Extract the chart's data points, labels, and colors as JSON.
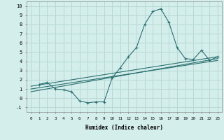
{
  "xlabel": "Humidex (Indice chaleur)",
  "bg_color": "#d4eeec",
  "grid_color": "#b8d8d5",
  "line_color": "#2a7070",
  "xlim": [
    -0.5,
    23.5
  ],
  "ylim": [
    -1.5,
    10.5
  ],
  "xticks": [
    0,
    1,
    2,
    3,
    4,
    5,
    6,
    7,
    8,
    9,
    10,
    11,
    12,
    13,
    14,
    15,
    16,
    17,
    18,
    19,
    20,
    21,
    22,
    23
  ],
  "yticks": [
    -1,
    0,
    1,
    2,
    3,
    4,
    5,
    6,
    7,
    8,
    9,
    10
  ],
  "series1_x": [
    1,
    2,
    3,
    4,
    5,
    6,
    7,
    8,
    9,
    10,
    11,
    12,
    13,
    14,
    15,
    16,
    17,
    18,
    19,
    20,
    21,
    22,
    23
  ],
  "series1_y": [
    1.5,
    1.7,
    1.0,
    0.9,
    0.7,
    -0.3,
    -0.5,
    -0.4,
    -0.4,
    2.2,
    3.3,
    4.5,
    5.5,
    8.0,
    9.4,
    9.7,
    8.2,
    5.5,
    4.3,
    4.2,
    5.2,
    4.1,
    4.5
  ],
  "series2_x": [
    0,
    23
  ],
  "series2_y": [
    1.3,
    4.5
  ],
  "series3_x": [
    0,
    23
  ],
  "series3_y": [
    1.0,
    4.1
  ],
  "series4_x": [
    0,
    23
  ],
  "series4_y": [
    0.7,
    4.3
  ]
}
